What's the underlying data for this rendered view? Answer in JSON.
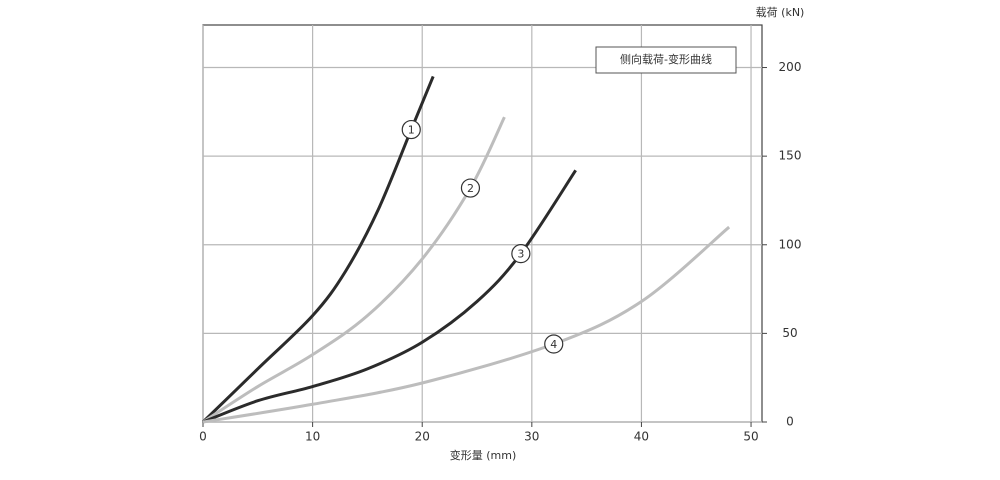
{
  "chart_data": {
    "type": "line",
    "title": "侧向载荷-变形曲线",
    "x_label": "变形量 (mm)",
    "y_label": "载荷 (kN)",
    "xlim": [
      0,
      51
    ],
    "ylim": [
      0,
      224
    ],
    "xticks": [
      0,
      10,
      20,
      30,
      40,
      50
    ],
    "yticks": [
      0,
      50,
      100,
      150,
      200
    ],
    "grid": true,
    "series": [
      {
        "name": "1",
        "color": "#2b2b2b",
        "x": [
          0,
          5,
          10,
          13,
          16,
          19,
          21
        ],
        "values": [
          0,
          30,
          60,
          85,
          120,
          165,
          195
        ]
      },
      {
        "name": "2",
        "color": "#bdbdbd",
        "x": [
          0,
          5,
          10,
          15,
          20,
          24.4,
          27.5
        ],
        "values": [
          0,
          20,
          38,
          60,
          92,
          132,
          172
        ]
      },
      {
        "name": "3",
        "color": "#2b2b2b",
        "x": [
          0,
          5,
          10,
          15,
          20,
          25,
          29,
          34
        ],
        "values": [
          0,
          12,
          20,
          30,
          45,
          68,
          95,
          142
        ]
      },
      {
        "name": "4",
        "color": "#bdbdbd",
        "x": [
          0,
          10,
          20,
          32,
          40,
          48
        ],
        "values": [
          0,
          10,
          22,
          44,
          68,
          110
        ]
      }
    ]
  }
}
